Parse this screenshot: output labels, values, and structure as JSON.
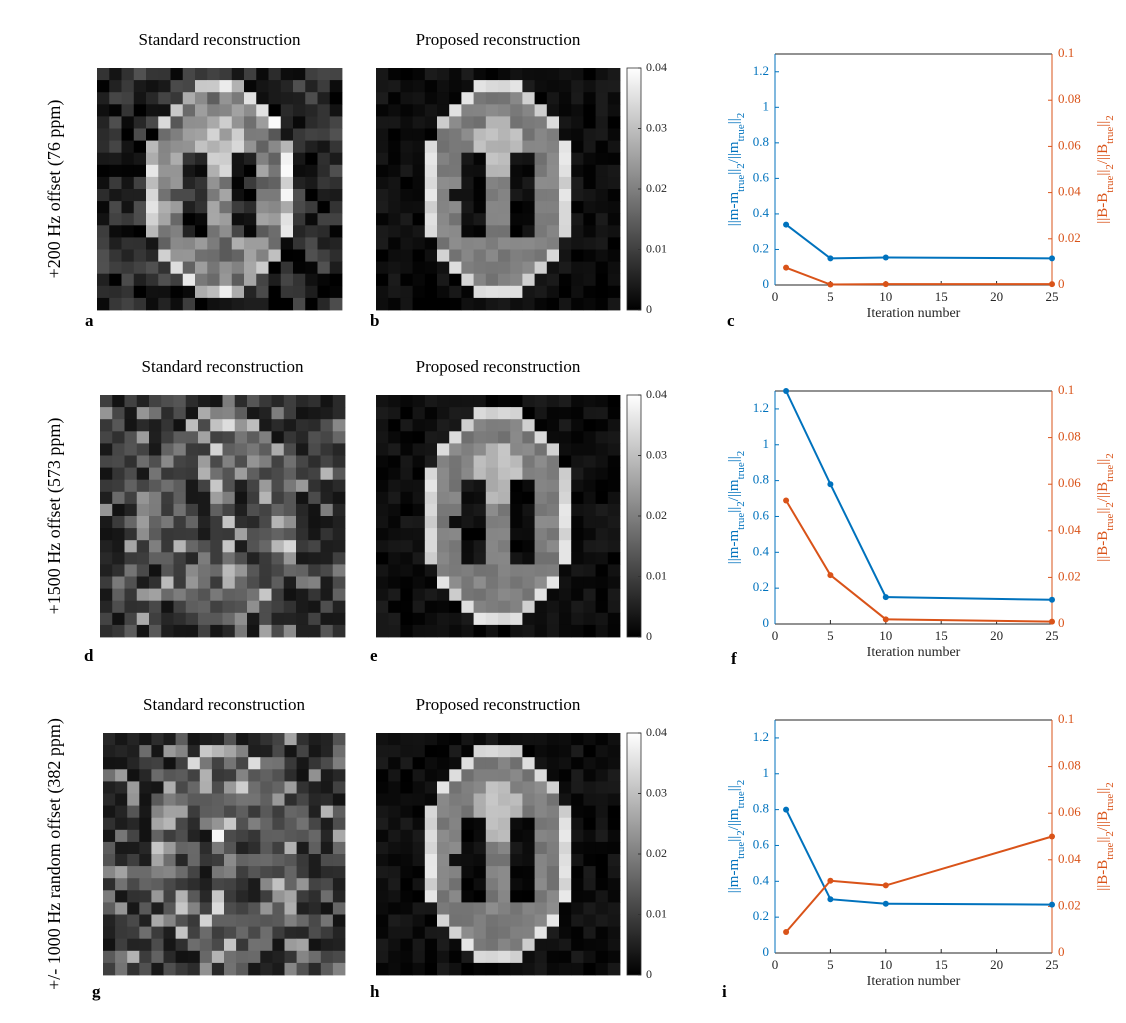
{
  "rows": [
    {
      "label": "+200 Hz offset (76 ppm)",
      "titles": [
        "Standard reconstruction",
        "Proposed reconstruction"
      ],
      "letters": [
        "a",
        "b",
        "c"
      ],
      "colorbar": {
        "lim": [
          0,
          0.04
        ],
        "ticks": [
          0,
          0.01,
          0.02,
          0.03,
          0.04
        ]
      }
    },
    {
      "label": "+1500 Hz offset (573 ppm)",
      "titles": [
        "Standard reconstruction",
        "Proposed reconstruction"
      ],
      "letters": [
        "d",
        "e",
        "f"
      ],
      "colorbar": {
        "lim": [
          0,
          0.04
        ],
        "ticks": [
          0,
          0.01,
          0.02,
          0.03,
          0.04
        ]
      }
    },
    {
      "label": "+/- 1000 Hz random offset (382 ppm)",
      "titles": [
        "Standard reconstruction",
        "Proposed reconstruction"
      ],
      "letters": [
        "g",
        "h",
        "i"
      ],
      "colorbar": {
        "lim": [
          0,
          0.04
        ],
        "ticks": [
          0,
          0.01,
          0.02,
          0.03,
          0.04
        ]
      }
    }
  ],
  "chart_data": [
    {
      "type": "line",
      "xlabel": "Iteration number",
      "ylabel": [
        {
          "text": "||m-m"
        },
        {
          "text": "true",
          "sub": true
        },
        {
          "text": "||"
        },
        {
          "text": "2",
          "sub": true
        },
        {
          "text": "/||m"
        },
        {
          "text": "true",
          "sub": true
        },
        {
          "text": "||"
        },
        {
          "text": "2",
          "sub": true
        }
      ],
      "y2label": [
        {
          "text": "||B-B"
        },
        {
          "text": "true",
          "sub": true
        },
        {
          "text": "||"
        },
        {
          "text": "2",
          "sub": true
        },
        {
          "text": "/||B"
        },
        {
          "text": "true",
          "sub": true
        },
        {
          "text": "||"
        },
        {
          "text": "2",
          "sub": true
        }
      ],
      "x": [
        1,
        5,
        10,
        25
      ],
      "xlim": [
        0,
        25
      ],
      "xticks": [
        0,
        5,
        10,
        15,
        20,
        25
      ],
      "ylim": [
        0,
        1.3
      ],
      "yticks": [
        0,
        0.2,
        0.4,
        0.6,
        0.8,
        1,
        1.2
      ],
      "y2lim": [
        0,
        0.1
      ],
      "y2ticks": [
        0,
        0.02,
        0.04,
        0.06,
        0.08,
        0.1
      ],
      "series": [
        {
          "color": "#0072bd",
          "values": [
            0.34,
            0.15,
            0.155,
            0.15
          ]
        },
        {
          "color": "#d95319",
          "axis": "y2",
          "values": [
            0.0075,
            0.0002,
            0.0004,
            0.0004
          ]
        }
      ]
    },
    {
      "type": "line",
      "xlabel": "Iteration number",
      "ylabel": [
        {
          "text": "||m-m"
        },
        {
          "text": "true",
          "sub": true
        },
        {
          "text": "||"
        },
        {
          "text": "2",
          "sub": true
        },
        {
          "text": "/||m"
        },
        {
          "text": "true",
          "sub": true
        },
        {
          "text": "||"
        },
        {
          "text": "2",
          "sub": true
        }
      ],
      "y2label": [
        {
          "text": "||B-B"
        },
        {
          "text": "true",
          "sub": true
        },
        {
          "text": "||"
        },
        {
          "text": "2",
          "sub": true
        },
        {
          "text": "/||B"
        },
        {
          "text": "true",
          "sub": true
        },
        {
          "text": "||"
        },
        {
          "text": "2",
          "sub": true
        }
      ],
      "x": [
        1,
        5,
        10,
        25
      ],
      "xlim": [
        0,
        25
      ],
      "xticks": [
        0,
        5,
        10,
        15,
        20,
        25
      ],
      "ylim": [
        0,
        1.3
      ],
      "yticks": [
        0,
        0.2,
        0.4,
        0.6,
        0.8,
        1,
        1.2
      ],
      "y2lim": [
        0,
        0.1
      ],
      "y2ticks": [
        0,
        0.02,
        0.04,
        0.06,
        0.08,
        0.1
      ],
      "series": [
        {
          "color": "#0072bd",
          "values": [
            1.3,
            0.78,
            0.15,
            0.135
          ]
        },
        {
          "color": "#d95319",
          "axis": "y2",
          "values": [
            0.053,
            0.021,
            0.002,
            0.001
          ]
        }
      ]
    },
    {
      "type": "line",
      "xlabel": "Iteration number",
      "ylabel": [
        {
          "text": "||m-m"
        },
        {
          "text": "true",
          "sub": true
        },
        {
          "text": "||"
        },
        {
          "text": "2",
          "sub": true
        },
        {
          "text": "/||m"
        },
        {
          "text": "true",
          "sub": true
        },
        {
          "text": "||"
        },
        {
          "text": "2",
          "sub": true
        }
      ],
      "y2label": [
        {
          "text": "||B-B"
        },
        {
          "text": "true",
          "sub": true
        },
        {
          "text": "||"
        },
        {
          "text": "2",
          "sub": true
        },
        {
          "text": "/||B"
        },
        {
          "text": "true",
          "sub": true
        },
        {
          "text": "||"
        },
        {
          "text": "2",
          "sub": true
        }
      ],
      "x": [
        1,
        5,
        10,
        25
      ],
      "xlim": [
        0,
        25
      ],
      "xticks": [
        0,
        5,
        10,
        15,
        20,
        25
      ],
      "ylim": [
        0,
        1.3
      ],
      "yticks": [
        0,
        0.2,
        0.4,
        0.6,
        0.8,
        1,
        1.2
      ],
      "y2lim": [
        0,
        0.1
      ],
      "y2ticks": [
        0,
        0.02,
        0.04,
        0.06,
        0.08,
        0.1
      ],
      "series": [
        {
          "color": "#0072bd",
          "values": [
            0.8,
            0.3,
            0.275,
            0.27
          ]
        },
        {
          "color": "#d95319",
          "axis": "y2",
          "values": [
            0.009,
            0.031,
            0.029,
            0.05
          ]
        }
      ]
    }
  ]
}
